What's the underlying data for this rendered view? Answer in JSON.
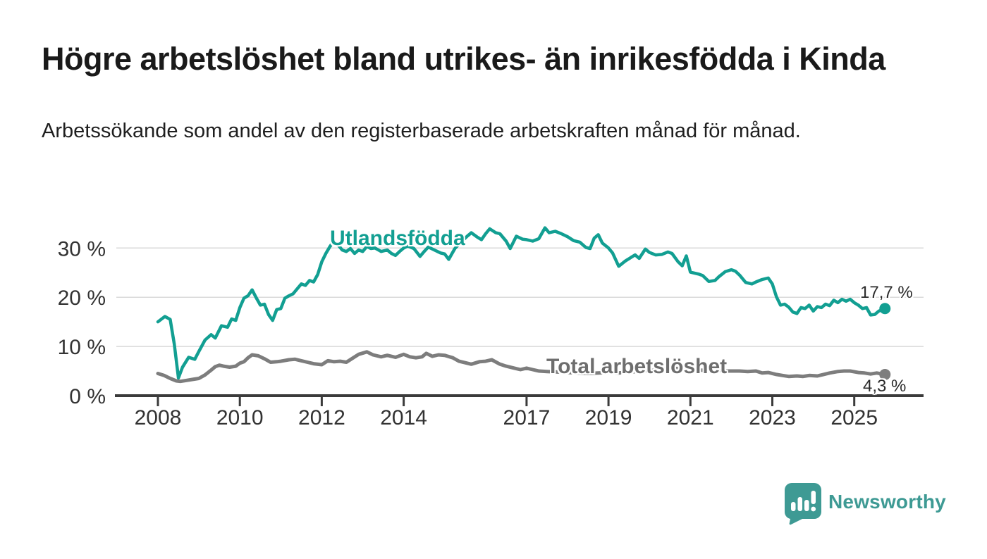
{
  "header": {
    "title": "Högre arbetslöshet bland utrikes- än inrikesfödda i Kinda",
    "subtitle": "Arbetssökande som andel av den registerbaserade arbetskraften månad för månad."
  },
  "chart_data": {
    "type": "line",
    "title": "Högre arbetslöshet bland utrikes- än inrikesfödda i Kinda",
    "subtitle": "Arbetssökande som andel av den registerbaserade arbetskraften månad för månad.",
    "xlabel": "",
    "ylabel": "",
    "grid": "horizontal-only",
    "legend_position": "inline-labels-on-lines",
    "x_axis": {
      "unit": "year",
      "tick_years": [
        2008,
        2010,
        2012,
        2014,
        2017,
        2019,
        2021,
        2023,
        2025
      ],
      "range_drawn": [
        2006.95,
        2026.7
      ]
    },
    "y_axis": {
      "ticks": [
        0,
        10,
        20,
        30
      ],
      "tick_suffix": " %",
      "range": [
        0,
        36
      ]
    },
    "series": [
      {
        "name": "Utlandsfödda",
        "color": "#129f92",
        "end_label": "17,7 %",
        "end_value": 17.7,
        "points": [
          [
            2008.0,
            15.0
          ],
          [
            2008.17,
            16.1
          ],
          [
            2008.3,
            15.5
          ],
          [
            2008.4,
            10.5
          ],
          [
            2008.5,
            3.6
          ],
          [
            2008.6,
            5.8
          ],
          [
            2008.75,
            7.8
          ],
          [
            2008.9,
            7.4
          ],
          [
            2009.0,
            9.0
          ],
          [
            2009.15,
            11.3
          ],
          [
            2009.3,
            12.4
          ],
          [
            2009.4,
            11.7
          ],
          [
            2009.55,
            14.2
          ],
          [
            2009.7,
            13.9
          ],
          [
            2009.8,
            15.6
          ],
          [
            2009.9,
            15.3
          ],
          [
            2010.0,
            17.9
          ],
          [
            2010.1,
            19.8
          ],
          [
            2010.2,
            20.3
          ],
          [
            2010.3,
            21.5
          ],
          [
            2010.4,
            19.9
          ],
          [
            2010.5,
            18.4
          ],
          [
            2010.6,
            18.6
          ],
          [
            2010.7,
            16.5
          ],
          [
            2010.8,
            15.3
          ],
          [
            2010.9,
            17.5
          ],
          [
            2011.0,
            17.7
          ],
          [
            2011.1,
            19.8
          ],
          [
            2011.2,
            20.3
          ],
          [
            2011.3,
            20.7
          ],
          [
            2011.4,
            21.7
          ],
          [
            2011.5,
            22.7
          ],
          [
            2011.6,
            22.4
          ],
          [
            2011.7,
            23.4
          ],
          [
            2011.8,
            23.1
          ],
          [
            2011.9,
            24.6
          ],
          [
            2012.0,
            27.2
          ],
          [
            2012.1,
            28.9
          ],
          [
            2012.2,
            30.3
          ],
          [
            2012.3,
            31.5
          ],
          [
            2012.4,
            30.6
          ],
          [
            2012.5,
            29.6
          ],
          [
            2012.6,
            29.3
          ],
          [
            2012.7,
            29.9
          ],
          [
            2012.8,
            28.9
          ],
          [
            2012.9,
            29.6
          ],
          [
            2013.0,
            29.3
          ],
          [
            2013.1,
            30.3
          ],
          [
            2013.2,
            29.9
          ],
          [
            2013.3,
            30.0
          ],
          [
            2013.45,
            29.3
          ],
          [
            2013.6,
            29.6
          ],
          [
            2013.7,
            28.9
          ],
          [
            2013.8,
            28.5
          ],
          [
            2013.9,
            29.3
          ],
          [
            2014.0,
            30.0
          ],
          [
            2014.1,
            30.4
          ],
          [
            2014.25,
            29.9
          ],
          [
            2014.4,
            28.3
          ],
          [
            2014.5,
            29.3
          ],
          [
            2014.6,
            30.2
          ],
          [
            2014.75,
            29.6
          ],
          [
            2014.9,
            29.0
          ],
          [
            2015.0,
            28.8
          ],
          [
            2015.1,
            27.7
          ],
          [
            2015.25,
            29.9
          ],
          [
            2015.4,
            31.2
          ],
          [
            2015.55,
            32.4
          ],
          [
            2015.65,
            33.1
          ],
          [
            2015.8,
            32.2
          ],
          [
            2015.9,
            31.7
          ],
          [
            2016.0,
            32.9
          ],
          [
            2016.1,
            33.9
          ],
          [
            2016.25,
            33.1
          ],
          [
            2016.35,
            32.9
          ],
          [
            2016.5,
            31.4
          ],
          [
            2016.6,
            29.9
          ],
          [
            2016.75,
            32.4
          ],
          [
            2016.9,
            31.8
          ],
          [
            2017.0,
            31.7
          ],
          [
            2017.15,
            31.4
          ],
          [
            2017.3,
            31.9
          ],
          [
            2017.45,
            34.1
          ],
          [
            2017.55,
            33.1
          ],
          [
            2017.7,
            33.4
          ],
          [
            2017.85,
            32.9
          ],
          [
            2018.0,
            32.3
          ],
          [
            2018.15,
            31.5
          ],
          [
            2018.3,
            31.2
          ],
          [
            2018.45,
            30.1
          ],
          [
            2018.55,
            29.9
          ],
          [
            2018.65,
            32.0
          ],
          [
            2018.75,
            32.7
          ],
          [
            2018.85,
            31.0
          ],
          [
            2019.0,
            30.0
          ],
          [
            2019.1,
            29.0
          ],
          [
            2019.25,
            26.3
          ],
          [
            2019.4,
            27.3
          ],
          [
            2019.55,
            28.1
          ],
          [
            2019.65,
            28.6
          ],
          [
            2019.75,
            27.9
          ],
          [
            2019.9,
            29.8
          ],
          [
            2020.0,
            29.1
          ],
          [
            2020.15,
            28.6
          ],
          [
            2020.3,
            28.7
          ],
          [
            2020.45,
            29.2
          ],
          [
            2020.55,
            28.9
          ],
          [
            2020.7,
            27.2
          ],
          [
            2020.8,
            26.4
          ],
          [
            2020.9,
            28.4
          ],
          [
            2021.0,
            25.1
          ],
          [
            2021.1,
            24.9
          ],
          [
            2021.2,
            24.7
          ],
          [
            2021.3,
            24.4
          ],
          [
            2021.45,
            23.2
          ],
          [
            2021.6,
            23.4
          ],
          [
            2021.7,
            24.2
          ],
          [
            2021.85,
            25.2
          ],
          [
            2022.0,
            25.6
          ],
          [
            2022.1,
            25.3
          ],
          [
            2022.2,
            24.5
          ],
          [
            2022.35,
            23.0
          ],
          [
            2022.5,
            22.7
          ],
          [
            2022.6,
            23.1
          ],
          [
            2022.75,
            23.6
          ],
          [
            2022.9,
            23.9
          ],
          [
            2023.0,
            22.7
          ],
          [
            2023.1,
            20.1
          ],
          [
            2023.2,
            18.4
          ],
          [
            2023.3,
            18.6
          ],
          [
            2023.4,
            18.0
          ],
          [
            2023.5,
            17.0
          ],
          [
            2023.6,
            16.7
          ],
          [
            2023.7,
            17.9
          ],
          [
            2023.8,
            17.7
          ],
          [
            2023.9,
            18.4
          ],
          [
            2024.0,
            17.2
          ],
          [
            2024.1,
            18.1
          ],
          [
            2024.2,
            17.9
          ],
          [
            2024.3,
            18.6
          ],
          [
            2024.4,
            18.3
          ],
          [
            2024.5,
            19.4
          ],
          [
            2024.6,
            18.9
          ],
          [
            2024.7,
            19.6
          ],
          [
            2024.8,
            19.2
          ],
          [
            2024.9,
            19.6
          ],
          [
            2025.0,
            18.9
          ],
          [
            2025.1,
            18.4
          ],
          [
            2025.2,
            17.7
          ],
          [
            2025.3,
            17.9
          ],
          [
            2025.4,
            16.4
          ],
          [
            2025.5,
            16.5
          ],
          [
            2025.6,
            17.2
          ],
          [
            2025.75,
            17.7
          ]
        ]
      },
      {
        "name": "Total arbetslöshet",
        "color": "#7d7d7d",
        "end_label": "4,3 %",
        "end_value": 4.3,
        "points": [
          [
            2008.0,
            4.5
          ],
          [
            2008.15,
            4.1
          ],
          [
            2008.3,
            3.5
          ],
          [
            2008.45,
            3.0
          ],
          [
            2008.55,
            2.9
          ],
          [
            2008.7,
            3.1
          ],
          [
            2008.85,
            3.3
          ],
          [
            2009.0,
            3.5
          ],
          [
            2009.15,
            4.2
          ],
          [
            2009.3,
            5.2
          ],
          [
            2009.4,
            5.9
          ],
          [
            2009.5,
            6.2
          ],
          [
            2009.6,
            6.0
          ],
          [
            2009.75,
            5.8
          ],
          [
            2009.9,
            6.0
          ],
          [
            2010.0,
            6.6
          ],
          [
            2010.1,
            6.9
          ],
          [
            2010.2,
            7.7
          ],
          [
            2010.3,
            8.3
          ],
          [
            2010.45,
            8.1
          ],
          [
            2010.6,
            7.5
          ],
          [
            2010.75,
            6.8
          ],
          [
            2010.9,
            6.9
          ],
          [
            2011.0,
            7.0
          ],
          [
            2011.2,
            7.3
          ],
          [
            2011.35,
            7.4
          ],
          [
            2011.5,
            7.1
          ],
          [
            2011.65,
            6.8
          ],
          [
            2011.8,
            6.5
          ],
          [
            2012.0,
            6.3
          ],
          [
            2012.15,
            7.1
          ],
          [
            2012.3,
            6.9
          ],
          [
            2012.45,
            7.0
          ],
          [
            2012.6,
            6.8
          ],
          [
            2012.75,
            7.6
          ],
          [
            2012.9,
            8.4
          ],
          [
            2013.1,
            8.9
          ],
          [
            2013.25,
            8.3
          ],
          [
            2013.45,
            7.9
          ],
          [
            2013.6,
            8.2
          ],
          [
            2013.8,
            7.8
          ],
          [
            2014.0,
            8.4
          ],
          [
            2014.15,
            7.9
          ],
          [
            2014.3,
            7.7
          ],
          [
            2014.45,
            7.9
          ],
          [
            2014.55,
            8.6
          ],
          [
            2014.7,
            8.0
          ],
          [
            2014.85,
            8.3
          ],
          [
            2015.0,
            8.2
          ],
          [
            2015.2,
            7.7
          ],
          [
            2015.35,
            7.0
          ],
          [
            2015.5,
            6.7
          ],
          [
            2015.65,
            6.4
          ],
          [
            2015.85,
            6.9
          ],
          [
            2016.0,
            7.0
          ],
          [
            2016.15,
            7.3
          ],
          [
            2016.35,
            6.4
          ],
          [
            2016.5,
            6.0
          ],
          [
            2016.7,
            5.6
          ],
          [
            2016.85,
            5.3
          ],
          [
            2017.0,
            5.6
          ],
          [
            2017.15,
            5.3
          ],
          [
            2017.3,
            5.0
          ],
          [
            2017.5,
            4.9
          ],
          [
            2017.75,
            4.8
          ],
          [
            2018.0,
            4.7
          ],
          [
            2018.25,
            4.6
          ],
          [
            2018.5,
            4.5
          ],
          [
            2018.75,
            4.6
          ],
          [
            2019.0,
            4.7
          ],
          [
            2019.25,
            4.6
          ],
          [
            2019.5,
            4.8
          ],
          [
            2019.75,
            4.9
          ],
          [
            2020.0,
            5.0
          ],
          [
            2020.25,
            5.4
          ],
          [
            2020.5,
            5.6
          ],
          [
            2020.75,
            5.5
          ],
          [
            2021.0,
            5.3
          ],
          [
            2021.25,
            5.2
          ],
          [
            2021.5,
            5.1
          ],
          [
            2021.75,
            5.0
          ],
          [
            2022.0,
            5.0
          ],
          [
            2022.2,
            5.0
          ],
          [
            2022.4,
            4.9
          ],
          [
            2022.6,
            5.0
          ],
          [
            2022.75,
            4.6
          ],
          [
            2022.9,
            4.7
          ],
          [
            2023.1,
            4.3
          ],
          [
            2023.25,
            4.1
          ],
          [
            2023.4,
            3.9
          ],
          [
            2023.6,
            4.0
          ],
          [
            2023.75,
            3.9
          ],
          [
            2023.9,
            4.1
          ],
          [
            2024.1,
            4.0
          ],
          [
            2024.25,
            4.3
          ],
          [
            2024.4,
            4.6
          ],
          [
            2024.6,
            4.9
          ],
          [
            2024.75,
            5.0
          ],
          [
            2024.9,
            5.0
          ],
          [
            2025.1,
            4.7
          ],
          [
            2025.25,
            4.6
          ],
          [
            2025.4,
            4.4
          ],
          [
            2025.55,
            4.6
          ],
          [
            2025.75,
            4.3
          ]
        ]
      }
    ],
    "colors": {
      "axis_line": "#3b3b3b",
      "axis_text": "#333333",
      "gridline": "#dadada",
      "title_text": "#1a1a1a",
      "annotation_text": "#2b2b2b"
    }
  },
  "footer": {
    "brand": "Newsworthy",
    "brand_color": "#3e9a94",
    "logo_icon": "newsworthy-speech-bubble-bar-chart-icon"
  }
}
